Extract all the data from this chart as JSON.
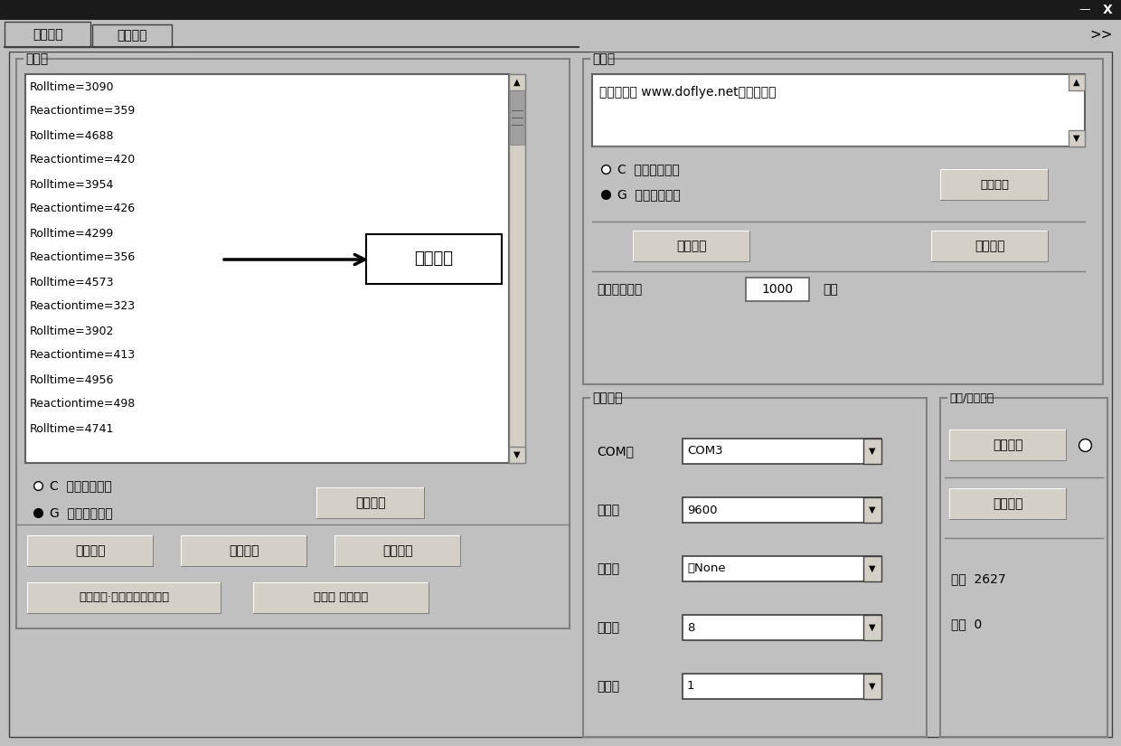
{
  "bg_color": "#c0c0c0",
  "title_bar_color": "#000000",
  "tab_labels": [
    "通用串口",
    "蓝牙串口"
  ],
  "receive_area_label": "接收区",
  "receive_data": [
    "Rolltime=3090",
    "Reactiontime=359",
    "Rolltime=4688",
    "Reactiontime=420",
    "Rolltime=3954",
    "Reactiontime=426",
    "Rolltime=4299",
    "Reactiontime=356",
    "Rolltime=4573",
    "Reactiontime=323",
    "Rolltime=3902",
    "Reactiontime=413",
    "Rolltime=4956",
    "Reactiontime=498",
    "Rolltime=4741"
  ],
  "arrow_label": "接受数据",
  "receive_radio1": "C  十六进制显示",
  "receive_radio2": "G  字符格式显示",
  "clear_receive_btn": "清接收区",
  "bottom_buttons": [
    "扫描串口",
    "更新时间",
    "使用说明"
  ],
  "bottom_buttons2": [
    "软件升级·技术论坛（帮助）",
    "德飞莱 产品列表"
  ],
  "send_area_label": "发送区",
  "send_text": "技术论坛： www.doflye.net德飞莱品牌",
  "send_radio1": "C  十六进制显示",
  "send_radio2": "G  字符格式显示",
  "clear_send_btn": "清发送区",
  "auto_send_btn": "自动发送",
  "manual_send_btn": "手动发送",
  "auto_period_label": "自动发送周期",
  "period_value": "1000",
  "ms_label": "毫秒",
  "port_settings_label": "端口设置",
  "com_label": "COM口",
  "com_value": "COM3",
  "baud_label": "波特率",
  "baud_value": "9600",
  "parity_label": "校验位",
  "parity_value": "无None",
  "data_bits_label": "数据位",
  "data_bits_value": "8",
  "stop_bits_label": "停止位",
  "stop_bits_value": "1",
  "open_close_label": "打开/关闭串口",
  "open_btn": "打开串口",
  "clear_count_btn": "清空计数",
  "receive_count": "接收  2627",
  "send_count": "发送  0",
  "more_label": ">>"
}
